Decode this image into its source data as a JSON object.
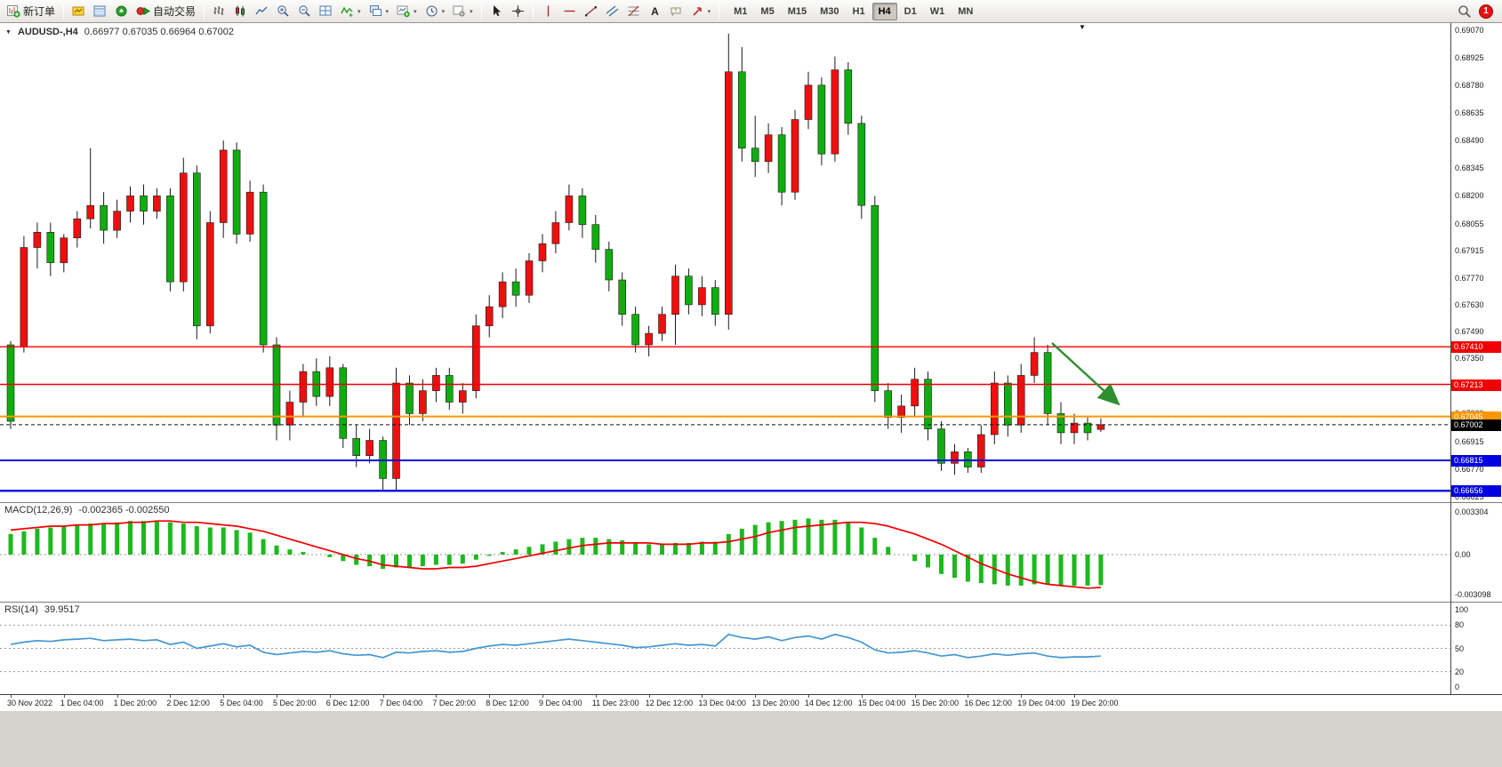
{
  "toolbar": {
    "new_order": "新订单",
    "autotrading": "自动交易",
    "timeframes": [
      "M1",
      "M5",
      "M15",
      "M30",
      "H1",
      "H4",
      "D1",
      "W1",
      "MN"
    ],
    "active_timeframe": "H4",
    "notification_badge": "1"
  },
  "chart": {
    "symbol_period": "AUDUSD-,H4",
    "ohlc": "0.66977 0.67035 0.66964 0.67002",
    "colors": {
      "up": "#ee0f0f",
      "down": "#10ad10",
      "macd_hist": "#1eb81e",
      "macd_signal": "#f20000",
      "rsi": "#4496d2",
      "arrow": "#2f8f2f"
    }
  },
  "price_axis_labels": [
    "0.69070",
    "0.68925",
    "0.68780",
    "0.68635",
    "0.68490",
    "0.68345",
    "0.68200",
    "0.68055",
    "0.67915",
    "0.67770",
    "0.67630",
    "0.67490",
    "0.67350",
    "0.67205",
    "0.67060",
    "0.66915",
    "0.66770",
    "0.66625"
  ],
  "hlines": [
    {
      "price": 0.6741,
      "label": "0.67410",
      "color": "#f00000",
      "width": 1.4
    },
    {
      "price": 0.67213,
      "label": "0.67213",
      "color": "#f00000",
      "width": 1.4
    },
    {
      "price": 0.67045,
      "label": "0.67045",
      "color": "#ff9600",
      "width": 2
    },
    {
      "price": 0.66815,
      "label": "0.66815",
      "color": "#0000e0",
      "width": 2
    },
    {
      "price": 0.66656,
      "label": "0.66656",
      "color": "#0000e0",
      "width": 2.4
    }
  ],
  "current_price": {
    "price": 0.67002,
    "label": "0.67002",
    "color": "#000000"
  },
  "macd": {
    "name": "MACD(12,26,9)",
    "values": "-0.002365 -0.002550",
    "axis": [
      "0.003304",
      "0.00",
      "-0.003098"
    ]
  },
  "rsi": {
    "name": "RSI(14)",
    "value": "39.9517",
    "axis": [
      "100",
      "80",
      "50",
      "20",
      "0"
    ],
    "levels": [
      80,
      50,
      20
    ]
  },
  "time_axis": [
    "30 Nov 2022",
    "1 Dec 04:00",
    "1 Dec 20:00",
    "2 Dec 12:00",
    "5 Dec 04:00",
    "5 Dec 20:00",
    "6 Dec 12:00",
    "7 Dec 04:00",
    "7 Dec 20:00",
    "8 Dec 12:00",
    "9 Dec 04:00",
    "11 Dec 23:00",
    "12 Dec 12:00",
    "13 Dec 04:00",
    "13 Dec 20:00",
    "14 Dec 12:00",
    "15 Dec 04:00",
    "15 Dec 20:00",
    "16 Dec 12:00",
    "19 Dec 04:00",
    "19 Dec 20:00"
  ],
  "chart_data": {
    "type": "candlestick",
    "symbol": "AUDUSD",
    "period": "H4",
    "price_range": [
      0.66601,
      0.69105
    ],
    "up_means": "red (CN convention)",
    "candles": [
      [
        0.6742,
        0.6744,
        0.6698,
        0.6702
      ],
      [
        0.6741,
        0.6799,
        0.6738,
        0.6793
      ],
      [
        0.6793,
        0.6806,
        0.6782,
        0.6801
      ],
      [
        0.6801,
        0.6806,
        0.6778,
        0.6785
      ],
      [
        0.6785,
        0.68,
        0.678,
        0.6798
      ],
      [
        0.6798,
        0.6812,
        0.6793,
        0.6808
      ],
      [
        0.6808,
        0.6845,
        0.6803,
        0.6815
      ],
      [
        0.6815,
        0.6822,
        0.6795,
        0.6802
      ],
      [
        0.6802,
        0.6818,
        0.6798,
        0.6812
      ],
      [
        0.6812,
        0.6825,
        0.6806,
        0.682
      ],
      [
        0.682,
        0.6826,
        0.6805,
        0.6812
      ],
      [
        0.6812,
        0.6824,
        0.6808,
        0.682
      ],
      [
        0.682,
        0.6824,
        0.677,
        0.6775
      ],
      [
        0.6775,
        0.684,
        0.677,
        0.6832
      ],
      [
        0.6832,
        0.6836,
        0.6745,
        0.6752
      ],
      [
        0.6752,
        0.6812,
        0.6748,
        0.6806
      ],
      [
        0.6806,
        0.6849,
        0.6798,
        0.6844
      ],
      [
        0.6844,
        0.6848,
        0.6795,
        0.68
      ],
      [
        0.68,
        0.6828,
        0.6796,
        0.6822
      ],
      [
        0.6822,
        0.6826,
        0.6738,
        0.6742
      ],
      [
        0.6742,
        0.6746,
        0.6692,
        0.67
      ],
      [
        0.67,
        0.6718,
        0.6692,
        0.6712
      ],
      [
        0.6712,
        0.6732,
        0.6704,
        0.6728
      ],
      [
        0.6728,
        0.6735,
        0.671,
        0.6715
      ],
      [
        0.6715,
        0.6736,
        0.671,
        0.673
      ],
      [
        0.673,
        0.6732,
        0.6688,
        0.6693
      ],
      [
        0.6693,
        0.67,
        0.6678,
        0.6684
      ],
      [
        0.6684,
        0.6698,
        0.668,
        0.6692
      ],
      [
        0.6692,
        0.6694,
        0.6666,
        0.6672
      ],
      [
        0.6672,
        0.673,
        0.6666,
        0.6722
      ],
      [
        0.6722,
        0.6726,
        0.67,
        0.6706
      ],
      [
        0.6706,
        0.6724,
        0.6702,
        0.6718
      ],
      [
        0.6718,
        0.673,
        0.6712,
        0.6726
      ],
      [
        0.6726,
        0.673,
        0.6708,
        0.6712
      ],
      [
        0.6712,
        0.6722,
        0.6706,
        0.6718
      ],
      [
        0.6718,
        0.6758,
        0.6714,
        0.6752
      ],
      [
        0.6752,
        0.6768,
        0.6746,
        0.6762
      ],
      [
        0.6762,
        0.678,
        0.6756,
        0.6775
      ],
      [
        0.6775,
        0.6782,
        0.6762,
        0.6768
      ],
      [
        0.6768,
        0.679,
        0.6764,
        0.6786
      ],
      [
        0.6786,
        0.68,
        0.678,
        0.6795
      ],
      [
        0.6795,
        0.6812,
        0.679,
        0.6806
      ],
      [
        0.6806,
        0.6826,
        0.6802,
        0.682
      ],
      [
        0.682,
        0.6824,
        0.6798,
        0.6805
      ],
      [
        0.6805,
        0.681,
        0.6785,
        0.6792
      ],
      [
        0.6792,
        0.6796,
        0.677,
        0.6776
      ],
      [
        0.6776,
        0.678,
        0.6752,
        0.6758
      ],
      [
        0.6758,
        0.6762,
        0.6738,
        0.6742
      ],
      [
        0.6742,
        0.6752,
        0.6736,
        0.6748
      ],
      [
        0.6748,
        0.6762,
        0.6744,
        0.6758
      ],
      [
        0.6758,
        0.6784,
        0.6742,
        0.6778
      ],
      [
        0.6778,
        0.6782,
        0.6758,
        0.6763
      ],
      [
        0.6763,
        0.6778,
        0.6757,
        0.6772
      ],
      [
        0.6772,
        0.6776,
        0.6752,
        0.6758
      ],
      [
        0.6758,
        0.6905,
        0.675,
        0.6885
      ],
      [
        0.6885,
        0.6898,
        0.6838,
        0.6845
      ],
      [
        0.6845,
        0.6862,
        0.683,
        0.6838
      ],
      [
        0.6838,
        0.6858,
        0.6832,
        0.6852
      ],
      [
        0.6852,
        0.6856,
        0.6815,
        0.6822
      ],
      [
        0.6822,
        0.6865,
        0.6818,
        0.686
      ],
      [
        0.686,
        0.6885,
        0.6855,
        0.6878
      ],
      [
        0.6878,
        0.6882,
        0.6836,
        0.6842
      ],
      [
        0.6842,
        0.6893,
        0.6838,
        0.6886
      ],
      [
        0.6886,
        0.689,
        0.6852,
        0.6858
      ],
      [
        0.6858,
        0.6862,
        0.6808,
        0.6815
      ],
      [
        0.6815,
        0.682,
        0.6712,
        0.6718
      ],
      [
        0.6718,
        0.6722,
        0.6698,
        0.6704
      ],
      [
        0.6704,
        0.6716,
        0.6696,
        0.671
      ],
      [
        0.671,
        0.673,
        0.6704,
        0.6724
      ],
      [
        0.6724,
        0.6728,
        0.6692,
        0.6698
      ],
      [
        0.6698,
        0.6702,
        0.6676,
        0.668
      ],
      [
        0.668,
        0.669,
        0.6674,
        0.6686
      ],
      [
        0.6686,
        0.6688,
        0.6675,
        0.6678
      ],
      [
        0.6678,
        0.67,
        0.6675,
        0.6695
      ],
      [
        0.6695,
        0.6728,
        0.669,
        0.6722
      ],
      [
        0.6722,
        0.6726,
        0.6694,
        0.67
      ],
      [
        0.67,
        0.6732,
        0.6696,
        0.6726
      ],
      [
        0.6726,
        0.6746,
        0.6722,
        0.6738
      ],
      [
        0.6738,
        0.6742,
        0.67,
        0.6706
      ],
      [
        0.6706,
        0.6712,
        0.669,
        0.6696
      ],
      [
        0.6696,
        0.6706,
        0.669,
        0.6701
      ],
      [
        0.6701,
        0.6704,
        0.6692,
        0.6696
      ],
      [
        0.66977,
        0.67035,
        0.66964,
        0.67002
      ]
    ],
    "macd_range": [
      -0.003098,
      0.003304
    ],
    "macd_hist": [
      0.0016,
      0.0018,
      0.002,
      0.0021,
      0.0022,
      0.0023,
      0.0024,
      0.0024,
      0.0025,
      0.0026,
      0.0026,
      0.0026,
      0.0025,
      0.0024,
      0.0022,
      0.0021,
      0.0021,
      0.0019,
      0.0017,
      0.0012,
      0.0007,
      0.0004,
      0.0002,
      0.0,
      -0.0002,
      -0.0005,
      -0.0008,
      -0.0009,
      -0.0011,
      -0.001,
      -0.001,
      -0.0009,
      -0.0008,
      -0.0008,
      -0.0007,
      -0.0004,
      -0.0001,
      0.0002,
      0.0004,
      0.0006,
      0.0008,
      0.001,
      0.0012,
      0.0013,
      0.0013,
      0.0012,
      0.0011,
      0.0009,
      0.0008,
      0.0008,
      0.0009,
      0.0009,
      0.001,
      0.001,
      0.0016,
      0.002,
      0.0023,
      0.0025,
      0.0026,
      0.0027,
      0.0028,
      0.0027,
      0.0027,
      0.0025,
      0.0021,
      0.0013,
      0.0006,
      0.0,
      -0.0005,
      -0.001,
      -0.0015,
      -0.0018,
      -0.0021,
      -0.0022,
      -0.0023,
      -0.0024,
      -0.0024,
      -0.0023,
      -0.0023,
      -0.0024,
      -0.0024,
      -0.0024,
      -0.002365
    ],
    "macd_signal": [
      0.0019,
      0.002,
      0.0021,
      0.0022,
      0.0022,
      0.0023,
      0.0023,
      0.0024,
      0.0024,
      0.0025,
      0.0025,
      0.0026,
      0.0026,
      0.0025,
      0.0025,
      0.0024,
      0.0023,
      0.0022,
      0.002,
      0.0018,
      0.0015,
      0.0012,
      0.0009,
      0.0006,
      0.0003,
      0.0,
      -0.0003,
      -0.0005,
      -0.0008,
      -0.0009,
      -0.001,
      -0.0011,
      -0.0011,
      -0.001,
      -0.001,
      -0.0009,
      -0.0007,
      -0.0005,
      -0.0003,
      -0.0001,
      0.0001,
      0.0003,
      0.0005,
      0.0007,
      0.0008,
      0.0009,
      0.0009,
      0.0009,
      0.0009,
      0.0008,
      0.0008,
      0.0008,
      0.0009,
      0.0009,
      0.001,
      0.0012,
      0.0014,
      0.0017,
      0.0019,
      0.0021,
      0.0022,
      0.0023,
      0.0024,
      0.0025,
      0.0025,
      0.0024,
      0.0022,
      0.0019,
      0.0016,
      0.0012,
      0.0008,
      0.0003,
      -0.0002,
      -0.0007,
      -0.0011,
      -0.0015,
      -0.0018,
      -0.0021,
      -0.0023,
      -0.0024,
      -0.0025,
      -0.0026,
      -0.00255
    ],
    "rsi_range": [
      0,
      100
    ],
    "rsi": [
      55,
      58,
      60,
      59,
      61,
      62,
      63,
      60,
      61,
      62,
      60,
      61,
      55,
      58,
      50,
      53,
      56,
      52,
      54,
      45,
      42,
      44,
      46,
      45,
      47,
      43,
      41,
      42,
      38,
      45,
      44,
      46,
      47,
      45,
      46,
      50,
      53,
      55,
      54,
      56,
      58,
      60,
      62,
      60,
      58,
      56,
      54,
      51,
      52,
      54,
      56,
      54,
      55,
      53,
      68,
      64,
      62,
      65,
      60,
      64,
      66,
      62,
      68,
      64,
      58,
      48,
      44,
      45,
      47,
      44,
      40,
      42,
      38,
      40,
      43,
      41,
      43,
      44,
      40,
      38,
      39,
      39,
      39.9517
    ]
  }
}
